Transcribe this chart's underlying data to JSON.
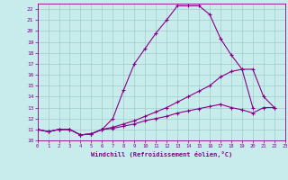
{
  "xlabel": "Windchill (Refroidissement éolien,°C)",
  "xlim": [
    0,
    23
  ],
  "ylim": [
    10,
    22.5
  ],
  "xticks": [
    0,
    1,
    2,
    3,
    4,
    5,
    6,
    7,
    8,
    9,
    10,
    11,
    12,
    13,
    14,
    15,
    16,
    17,
    18,
    19,
    20,
    21,
    22,
    23
  ],
  "yticks": [
    10,
    11,
    12,
    13,
    14,
    15,
    16,
    17,
    18,
    19,
    20,
    21,
    22
  ],
  "background_color": "#c8ecec",
  "grid_color": "#a0cccc",
  "line_color": "#880088",
  "line1_x": [
    0,
    1,
    2,
    3,
    4,
    5,
    6,
    7,
    8,
    9,
    10,
    11,
    12,
    13,
    14,
    15,
    16,
    17,
    18,
    19,
    20
  ],
  "line1_y": [
    11.0,
    10.8,
    11.0,
    11.0,
    10.5,
    10.6,
    11.0,
    12.0,
    14.6,
    17.0,
    18.4,
    19.8,
    21.0,
    22.3,
    22.3,
    22.3,
    21.5,
    19.3,
    17.8,
    16.5,
    13.0
  ],
  "line2_x": [
    0,
    1,
    2,
    3,
    4,
    5,
    6,
    7,
    8,
    9,
    10,
    11,
    12,
    13,
    14,
    15,
    16,
    17,
    18,
    19,
    20,
    21,
    22
  ],
  "line2_y": [
    11.0,
    10.8,
    11.0,
    11.0,
    10.5,
    10.6,
    11.0,
    11.2,
    11.5,
    11.8,
    12.2,
    12.6,
    13.0,
    13.5,
    14.0,
    14.5,
    15.0,
    15.8,
    16.3,
    16.5,
    16.5,
    14.0,
    13.0
  ],
  "line3_x": [
    0,
    1,
    2,
    3,
    4,
    5,
    6,
    7,
    8,
    9,
    10,
    11,
    12,
    13,
    14,
    15,
    16,
    17,
    18,
    19,
    20,
    21,
    22
  ],
  "line3_y": [
    11.0,
    10.8,
    11.0,
    11.0,
    10.5,
    10.6,
    11.0,
    11.1,
    11.3,
    11.5,
    11.8,
    12.0,
    12.2,
    12.5,
    12.7,
    12.9,
    13.1,
    13.3,
    13.0,
    12.8,
    12.5,
    13.0,
    13.0
  ]
}
